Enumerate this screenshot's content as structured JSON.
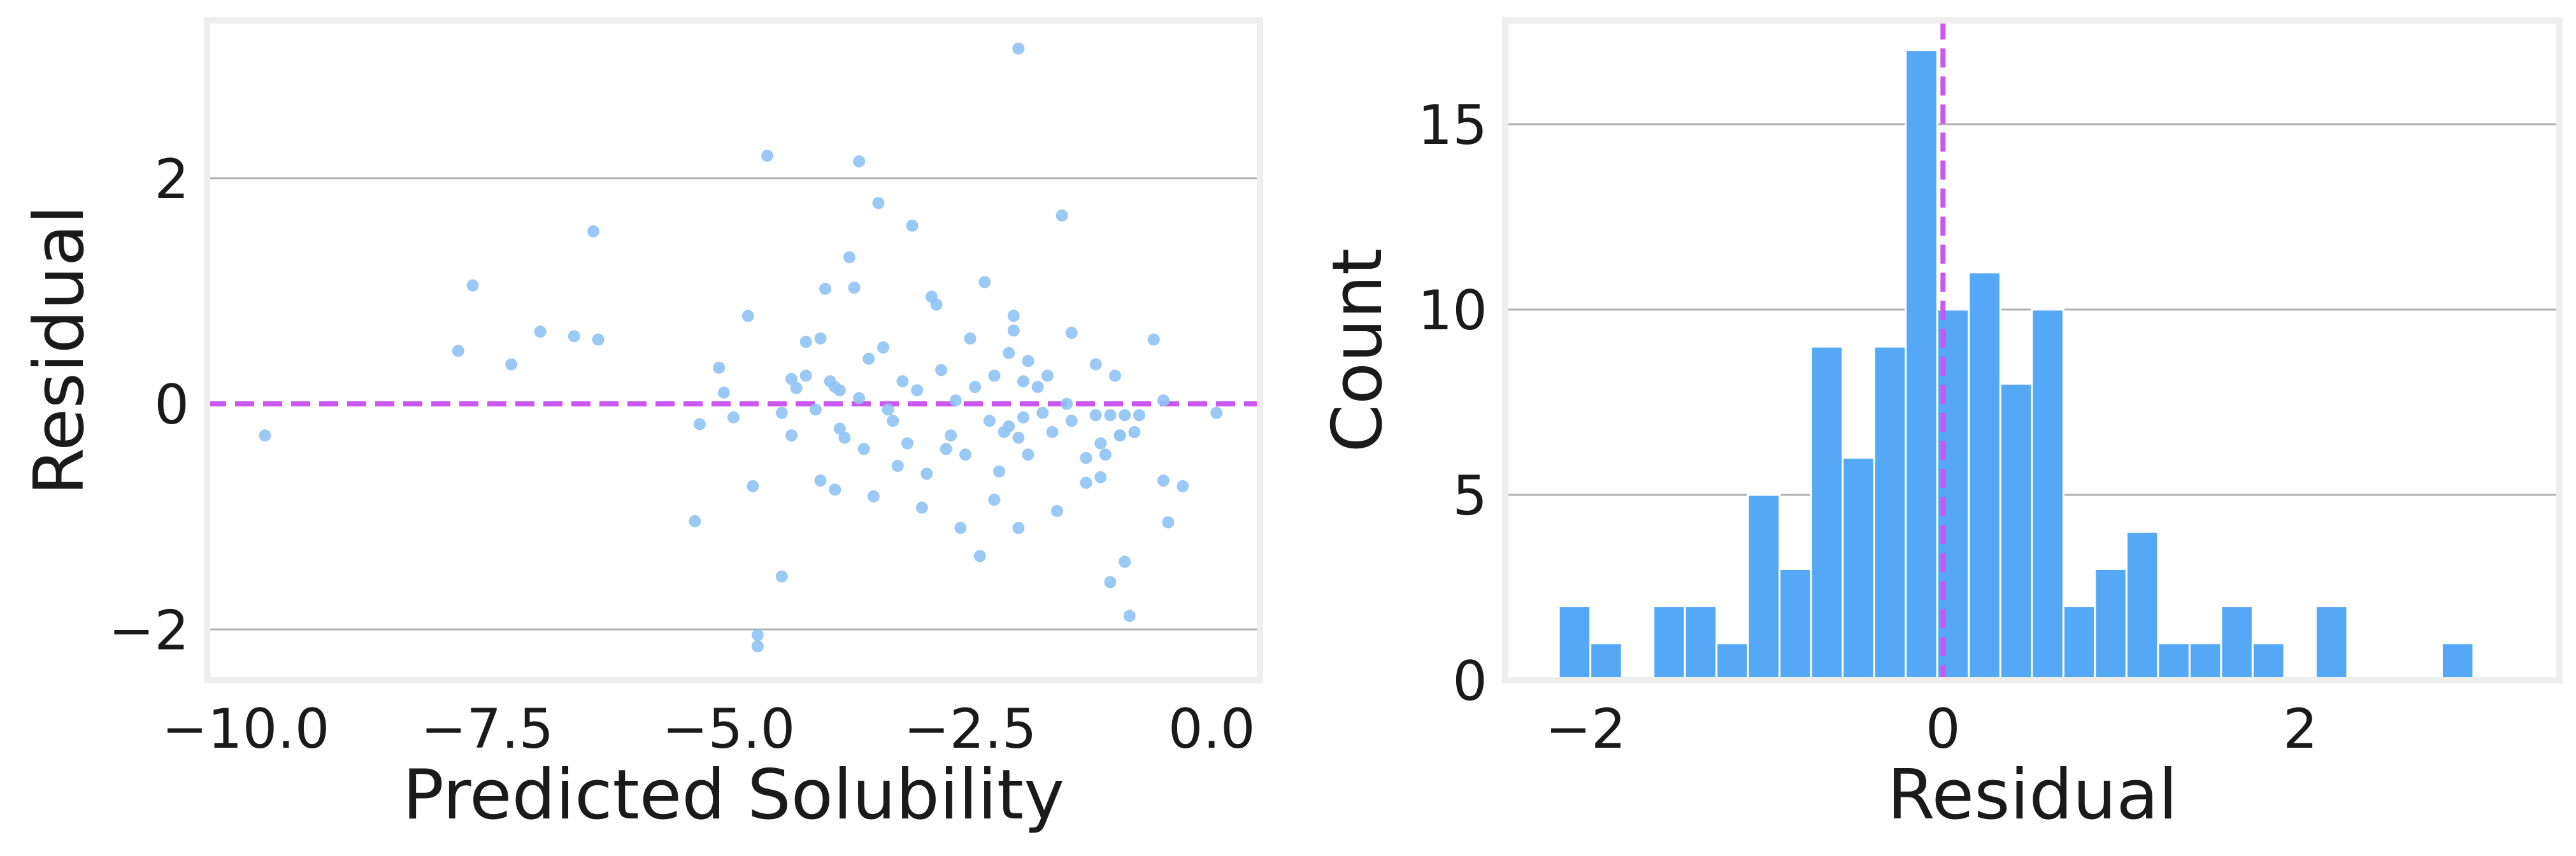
{
  "chart_data": [
    {
      "type": "scatter",
      "title": "",
      "xlabel": "Predicted Solubility",
      "ylabel": "Residual",
      "xlim": [
        -10.4,
        0.5
      ],
      "ylim": [
        -2.45,
        3.4
      ],
      "xticks": [
        -10.0,
        -7.5,
        -5.0,
        -2.5,
        0.0
      ],
      "xtick_labels": [
        "−10.0",
        "−7.5",
        "−5.0",
        "−2.5",
        "0.0"
      ],
      "yticks": [
        -2,
        0,
        2
      ],
      "ytick_labels": [
        "−2",
        "0",
        "2"
      ],
      "grid": "horizontal",
      "reference_line": {
        "y": 0,
        "style": "dashed",
        "color": "#c957f0"
      },
      "point_color": "#8fc3f5",
      "points": [
        [
          -9.8,
          -0.28
        ],
        [
          -7.8,
          0.47
        ],
        [
          -7.65,
          1.05
        ],
        [
          -7.25,
          0.35
        ],
        [
          -6.95,
          0.64
        ],
        [
          -6.6,
          0.6
        ],
        [
          -6.4,
          1.53
        ],
        [
          -6.35,
          0.57
        ],
        [
          -5.35,
          -1.04
        ],
        [
          -5.3,
          -0.18
        ],
        [
          -5.1,
          0.32
        ],
        [
          -5.05,
          0.1
        ],
        [
          -4.95,
          -0.12
        ],
        [
          -4.8,
          0.78
        ],
        [
          -4.75,
          -0.73
        ],
        [
          -4.7,
          -2.05
        ],
        [
          -4.7,
          -2.15
        ],
        [
          -4.6,
          2.2
        ],
        [
          -4.45,
          -0.08
        ],
        [
          -4.35,
          0.22
        ],
        [
          -4.3,
          0.14
        ],
        [
          -4.2,
          0.25
        ],
        [
          -4.1,
          -0.05
        ],
        [
          -4.05,
          -0.68
        ],
        [
          -4.0,
          1.02
        ],
        [
          -3.95,
          0.2
        ],
        [
          -3.9,
          -0.76
        ],
        [
          -3.85,
          0.12
        ],
        [
          -4.45,
          -1.53
        ],
        [
          -4.35,
          -0.28
        ],
        [
          -4.2,
          0.55
        ],
        [
          -4.05,
          0.58
        ],
        [
          -3.9,
          0.15
        ],
        [
          -3.85,
          -0.22
        ],
        [
          -3.8,
          -0.3
        ],
        [
          -3.75,
          1.3
        ],
        [
          -3.7,
          1.03
        ],
        [
          -3.65,
          0.05
        ],
        [
          -3.6,
          -0.4
        ],
        [
          -3.55,
          0.4
        ],
        [
          -3.5,
          -0.82
        ],
        [
          -3.45,
          1.78
        ],
        [
          -3.4,
          0.5
        ],
        [
          -3.35,
          -0.05
        ],
        [
          -3.3,
          -0.15
        ],
        [
          -3.25,
          -0.55
        ],
        [
          -3.2,
          0.2
        ],
        [
          -3.15,
          -0.35
        ],
        [
          -3.1,
          1.58
        ],
        [
          -3.05,
          0.12
        ],
        [
          -3.0,
          -0.92
        ],
        [
          -2.95,
          -0.62
        ],
        [
          -2.9,
          0.95
        ],
        [
          -2.85,
          0.88
        ],
        [
          -3.65,
          2.15
        ],
        [
          -2.8,
          0.3
        ],
        [
          -2.75,
          -0.4
        ],
        [
          -2.7,
          -0.28
        ],
        [
          -2.65,
          0.03
        ],
        [
          -2.6,
          -1.1
        ],
        [
          -2.55,
          -0.45
        ],
        [
          -2.5,
          0.58
        ],
        [
          -2.45,
          0.15
        ],
        [
          -2.4,
          -1.35
        ],
        [
          -2.35,
          1.08
        ],
        [
          -2.3,
          -0.15
        ],
        [
          -2.25,
          0.25
        ],
        [
          -2.2,
          -0.6
        ],
        [
          -2.15,
          -0.25
        ],
        [
          -2.1,
          0.45
        ],
        [
          -2.05,
          0.78
        ],
        [
          -2.0,
          -0.3
        ],
        [
          -1.95,
          0.2
        ],
        [
          -1.9,
          -0.45
        ],
        [
          -2.25,
          -0.85
        ],
        [
          -2.1,
          -0.2
        ],
        [
          -2.05,
          0.65
        ],
        [
          -2.0,
          3.15
        ],
        [
          -2.0,
          -1.1
        ],
        [
          -1.95,
          -0.12
        ],
        [
          -1.9,
          0.38
        ],
        [
          -1.8,
          0.15
        ],
        [
          -1.75,
          -0.08
        ],
        [
          -1.7,
          0.25
        ],
        [
          -1.65,
          -0.25
        ],
        [
          -1.6,
          -0.95
        ],
        [
          -1.55,
          1.67
        ],
        [
          -1.5,
          0.0
        ],
        [
          -1.45,
          -0.15
        ],
        [
          -1.45,
          0.63
        ],
        [
          -1.3,
          -0.7
        ],
        [
          -1.2,
          0.35
        ],
        [
          -1.15,
          -0.65
        ],
        [
          -1.1,
          -0.45
        ],
        [
          -1.05,
          -1.58
        ],
        [
          -1.0,
          0.25
        ],
        [
          -0.95,
          -0.28
        ],
        [
          -0.9,
          -0.1
        ],
        [
          -0.9,
          -1.4
        ],
        [
          -0.85,
          -1.88
        ],
        [
          -0.8,
          -0.25
        ],
        [
          -0.75,
          -0.1
        ],
        [
          -1.2,
          -0.1
        ],
        [
          -0.95,
          -0.28
        ],
        [
          -1.15,
          -0.35
        ],
        [
          -0.6,
          0.57
        ],
        [
          -0.5,
          -0.68
        ],
        [
          -0.45,
          -1.05
        ],
        [
          -0.5,
          0.03
        ],
        [
          -0.3,
          -0.73
        ],
        [
          0.05,
          -0.08
        ],
        [
          -1.3,
          -0.48
        ],
        [
          -1.05,
          -0.1
        ]
      ]
    },
    {
      "type": "histogram",
      "title": "",
      "xlabel": "Residual",
      "ylabel": "Count",
      "xlim": [
        -2.45,
        3.45
      ],
      "ylim": [
        0,
        17.8
      ],
      "xticks": [
        -2,
        0,
        2
      ],
      "xtick_labels": [
        "−2",
        "0",
        "2"
      ],
      "yticks": [
        0,
        5,
        10,
        15
      ],
      "ytick_labels": [
        "0",
        "5",
        "10",
        "15"
      ],
      "grid": "horizontal",
      "reference_line": {
        "x": 0,
        "style": "dashed",
        "color": "#c957f0"
      },
      "bar_color": "#55a8f5",
      "bin_start": -2.15,
      "bin_width": 0.1765,
      "counts": [
        2,
        1,
        0,
        2,
        2,
        1,
        5,
        3,
        9,
        6,
        9,
        17,
        10,
        11,
        8,
        10,
        2,
        3,
        4,
        1,
        1,
        2,
        1,
        0,
        2,
        0,
        0,
        0,
        1
      ]
    }
  ]
}
